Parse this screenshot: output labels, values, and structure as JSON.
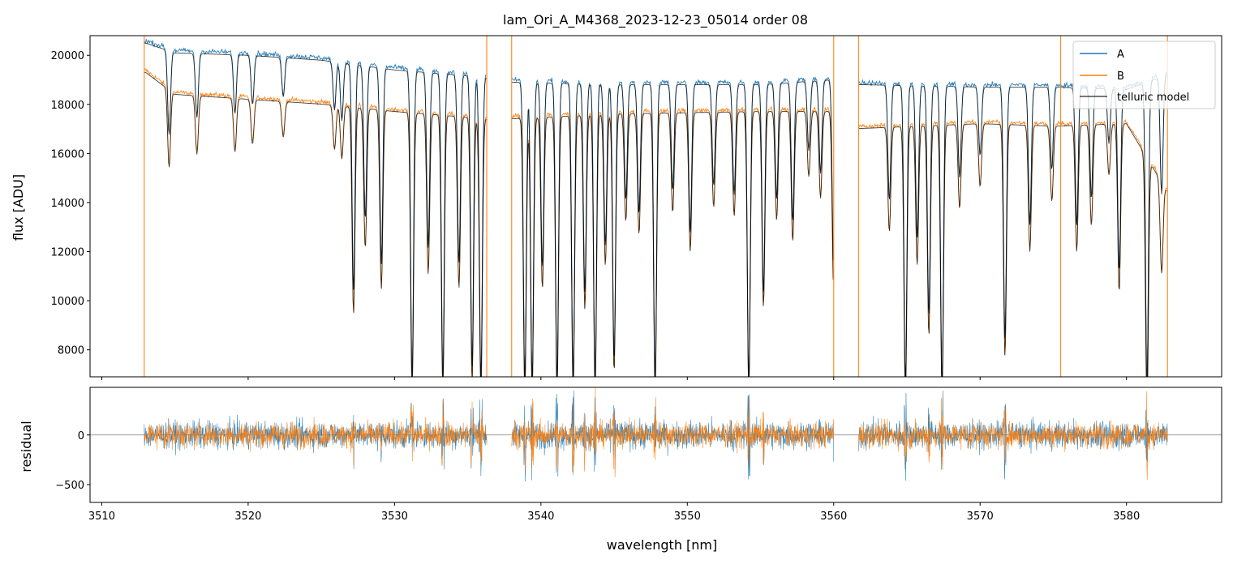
{
  "chart_data": [
    {
      "type": "line",
      "title": "lam_Ori_A_M4368_2023-12-23_05014  order 08",
      "xlabel": "",
      "ylabel": "flux [ADU]",
      "xlim": [
        3509.2,
        3586.5
      ],
      "ylim": [
        6900,
        20800
      ],
      "x_ticks": [
        3510,
        3520,
        3530,
        3540,
        3550,
        3560,
        3570,
        3580
      ],
      "y_ticks": [
        8000,
        10000,
        12000,
        14000,
        16000,
        18000,
        20000
      ],
      "y_tick_labels": [
        "8000",
        "10000",
        "12000",
        "14000",
        "16000",
        "18000",
        "20000"
      ],
      "grid": false,
      "legend": {
        "placement": "top-right",
        "entries": [
          "A",
          "B",
          "telluric model"
        ]
      },
      "colors": {
        "A": "#1f77b4",
        "B": "#ff7f0e",
        "model": "#000000"
      },
      "continuum": {
        "A": {
          "x": [
            3513.0,
            3515.0,
            3520.0,
            3525.0,
            3530.0,
            3536.3,
            3538.0,
            3545.0,
            3555.0,
            3560.0,
            3561.7,
            3570.0,
            3575.0,
            3580.0,
            3582.8
          ],
          "y": [
            20600,
            20200,
            20100,
            19900,
            19500,
            19200,
            19000,
            18900,
            18900,
            19100,
            18900,
            18800,
            18800,
            18700,
            19300
          ]
        },
        "B": {
          "x": [
            3513.0,
            3515.0,
            3520.0,
            3525.0,
            3530.0,
            3536.3,
            3538.0,
            3545.0,
            3555.0,
            3560.0,
            3561.7,
            3570.0,
            3575.0,
            3580.0,
            3582.8
          ],
          "y": [
            19400,
            18500,
            18300,
            18100,
            17800,
            17500,
            17500,
            17700,
            17800,
            17800,
            17100,
            17300,
            17200,
            17300,
            14500
          ]
        }
      },
      "absorption_lines": [
        {
          "x": 3514.6,
          "depth": 0.17
        },
        {
          "x": 3516.5,
          "depth": 0.13
        },
        {
          "x": 3519.1,
          "depth": 0.12
        },
        {
          "x": 3520.3,
          "depth": 0.1
        },
        {
          "x": 3522.4,
          "depth": 0.08
        },
        {
          "x": 3525.9,
          "depth": 0.1
        },
        {
          "x": 3526.4,
          "depth": 0.12
        },
        {
          "x": 3527.2,
          "depth": 0.47
        },
        {
          "x": 3528.0,
          "depth": 0.32
        },
        {
          "x": 3529.1,
          "depth": 0.41
        },
        {
          "x": 3531.2,
          "depth": 0.65
        },
        {
          "x": 3532.3,
          "depth": 0.37
        },
        {
          "x": 3533.3,
          "depth": 0.65
        },
        {
          "x": 3534.4,
          "depth": 0.4
        },
        {
          "x": 3535.3,
          "depth": 0.62
        },
        {
          "x": 3535.9,
          "depth": 0.65
        },
        {
          "x": 3538.9,
          "depth": 0.65
        },
        {
          "x": 3539.4,
          "depth": 0.65
        },
        {
          "x": 3540.1,
          "depth": 0.4
        },
        {
          "x": 3541.1,
          "depth": 0.65
        },
        {
          "x": 3542.2,
          "depth": 0.65
        },
        {
          "x": 3543.0,
          "depth": 0.45
        },
        {
          "x": 3543.7,
          "depth": 0.65
        },
        {
          "x": 3544.4,
          "depth": 0.35
        },
        {
          "x": 3545.0,
          "depth": 0.6
        },
        {
          "x": 3545.8,
          "depth": 0.25
        },
        {
          "x": 3546.7,
          "depth": 0.28
        },
        {
          "x": 3547.8,
          "depth": 0.65
        },
        {
          "x": 3549.0,
          "depth": 0.23
        },
        {
          "x": 3550.2,
          "depth": 0.32
        },
        {
          "x": 3551.8,
          "depth": 0.22
        },
        {
          "x": 3553.2,
          "depth": 0.24
        },
        {
          "x": 3554.2,
          "depth": 0.65
        },
        {
          "x": 3555.2,
          "depth": 0.45
        },
        {
          "x": 3556.1,
          "depth": 0.25
        },
        {
          "x": 3557.2,
          "depth": 0.3
        },
        {
          "x": 3558.3,
          "depth": 0.15
        },
        {
          "x": 3559.1,
          "depth": 0.2
        },
        {
          "x": 3560.0,
          "depth": 0.42
        },
        {
          "x": 3563.8,
          "depth": 0.25
        },
        {
          "x": 3564.9,
          "depth": 0.65
        },
        {
          "x": 3565.7,
          "depth": 0.33
        },
        {
          "x": 3566.5,
          "depth": 0.5
        },
        {
          "x": 3567.4,
          "depth": 0.65
        },
        {
          "x": 3568.6,
          "depth": 0.2
        },
        {
          "x": 3570.0,
          "depth": 0.15
        },
        {
          "x": 3571.7,
          "depth": 0.55
        },
        {
          "x": 3573.4,
          "depth": 0.3
        },
        {
          "x": 3574.9,
          "depth": 0.18
        },
        {
          "x": 3576.6,
          "depth": 0.3
        },
        {
          "x": 3577.6,
          "depth": 0.24
        },
        {
          "x": 3578.8,
          "depth": 0.12
        },
        {
          "x": 3579.5,
          "depth": 0.4
        },
        {
          "x": 3581.4,
          "depth": 0.65
        },
        {
          "x": 3582.4,
          "depth": 0.25
        }
      ],
      "spikes": [
        3512.9,
        3536.3,
        3538.0,
        3560.0,
        3561.7,
        3575.5,
        3582.8
      ]
    },
    {
      "type": "line",
      "title": "",
      "xlabel": "wavelength [nm]",
      "ylabel": "residual",
      "xlim": [
        3509.2,
        3586.5
      ],
      "ylim": [
        -680,
        480
      ],
      "x_ticks": [
        3510,
        3520,
        3530,
        3540,
        3550,
        3560,
        3570,
        3580
      ],
      "x_tick_labels": [
        "3510",
        "3520",
        "3530",
        "3540",
        "3550",
        "3560",
        "3570",
        "3580"
      ],
      "y_ticks": [
        -500,
        0
      ],
      "y_tick_labels": [
        "−500",
        "0"
      ],
      "grid": false,
      "reference_line": 0,
      "segments": [
        [
          3512.9,
          3536.3
        ],
        [
          3538.0,
          3560.0
        ],
        [
          3561.7,
          3582.8
        ]
      ],
      "noise_amplitude": {
        "A": 130,
        "B": 120
      },
      "colors": {
        "A": "#1f77b4",
        "B": "#ff7f0e",
        "zero_line": "#808080"
      }
    }
  ]
}
